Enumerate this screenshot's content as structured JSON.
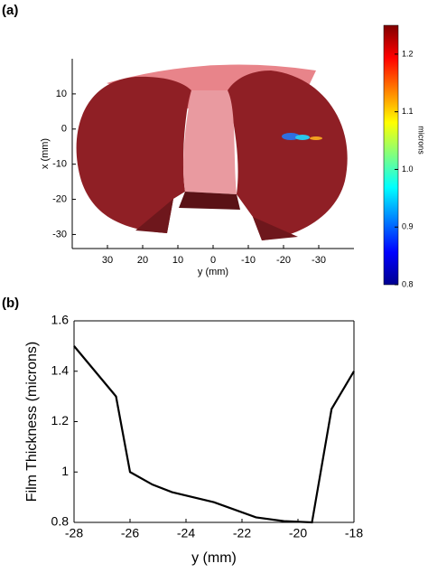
{
  "chart_data": [
    {
      "type": "image",
      "panel_label": "(a)",
      "xlabel": "y (mm)",
      "ylabel": "x (mm)",
      "xlim": [
        40,
        -40
      ],
      "xticks": [
        30,
        20,
        10,
        0,
        -10,
        -20,
        -30
      ],
      "ylim": [
        -34,
        20
      ],
      "yticks": [
        10,
        0,
        -10,
        -20,
        -30
      ],
      "colorbar": {
        "label": "microns",
        "lim": [
          0.8,
          1.25
        ],
        "ticks": [
          0.8,
          0.9,
          {
            "value": 1,
            "label": "1.0"
          },
          1.1,
          1.2
        ]
      }
    },
    {
      "type": "line",
      "panel_label": "(b)",
      "xlabel": "y (mm)",
      "ylabel": "Film Thickness (microns)",
      "x": [
        -28,
        -26.5,
        -26,
        -25.2,
        -24.5,
        -23,
        -21.5,
        -20.5,
        -19.5,
        -18.8,
        -18
      ],
      "values": [
        1.5,
        1.3,
        1.0,
        0.95,
        0.92,
        0.88,
        0.82,
        0.805,
        0.8,
        1.25,
        1.4
      ],
      "color": "#000000",
      "xlim": [
        -28,
        -18
      ],
      "xticks": [
        -28,
        -26,
        -24,
        -22,
        -20,
        -18
      ],
      "ylim": [
        0.8,
        1.6
      ],
      "yticks": [
        0.8,
        1,
        1.2,
        1.4,
        1.6
      ]
    }
  ]
}
